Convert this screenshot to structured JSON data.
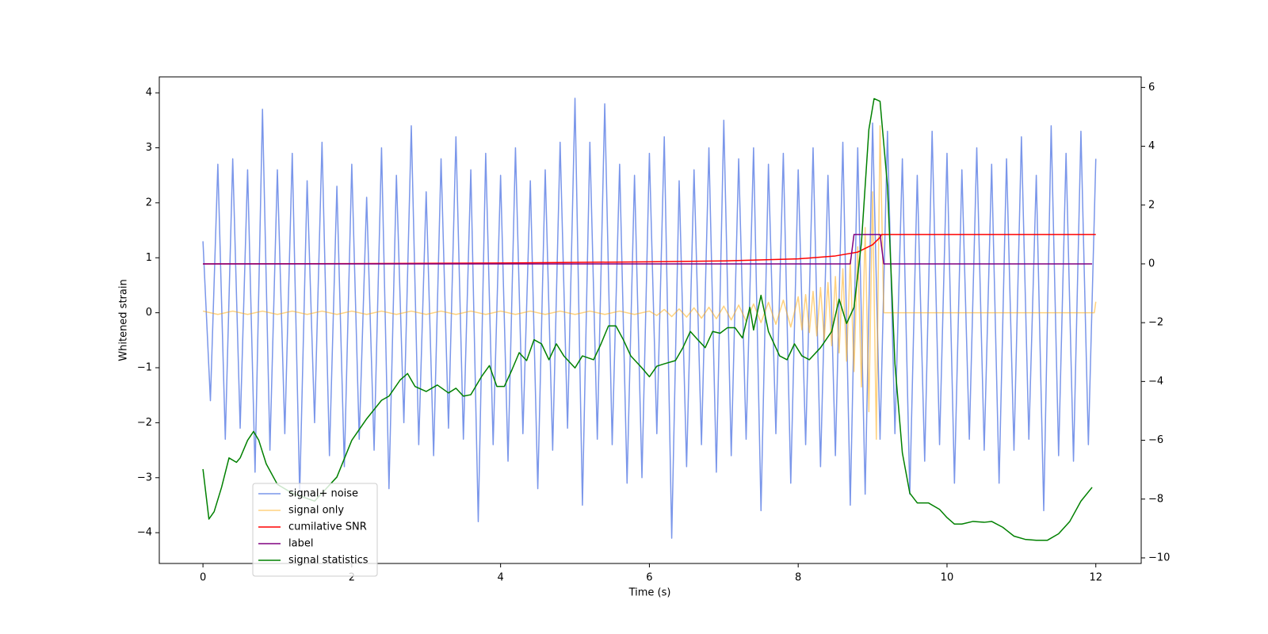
{
  "chart_data": {
    "type": "line",
    "xlabel": "Time (s)",
    "ylabel": "Whitened strain",
    "xlim": [
      -0.587,
      12.61
    ],
    "ylim": [
      -4.56,
      4.29
    ],
    "y2lim": [
      -10.19,
      6.36
    ],
    "xticks": [
      0,
      2,
      4,
      6,
      8,
      10,
      12
    ],
    "yticks": [
      {
        "value": -4,
        "label": "−4"
      },
      {
        "value": -3,
        "label": "−3"
      },
      {
        "value": -2,
        "label": "−2"
      },
      {
        "value": -1,
        "label": "−1"
      },
      0,
      1,
      2,
      3,
      4
    ],
    "y2ticks": [
      {
        "value": -10,
        "label": "−10"
      },
      {
        "value": -8,
        "label": "−8"
      },
      {
        "value": -6,
        "label": "−6"
      },
      {
        "value": -4,
        "label": "−4"
      },
      {
        "value": -2,
        "label": "−2"
      },
      0,
      2,
      4,
      6
    ],
    "legend": "lower left",
    "series": [
      {
        "name": "signal+ noise",
        "color": "royalblue",
        "alpha": 0.7,
        "x": [
          0,
          0.1,
          0.2,
          0.3,
          0.4,
          0.5,
          0.6,
          0.7,
          0.8,
          0.9,
          1,
          1.1,
          1.2,
          1.3,
          1.4,
          1.5,
          1.6,
          1.7,
          1.8,
          1.9,
          2,
          2.1,
          2.2,
          2.3,
          2.4,
          2.5,
          2.6,
          2.7,
          2.8,
          2.9,
          3,
          3.1,
          3.2,
          3.3,
          3.4,
          3.5,
          3.6,
          3.7,
          3.8,
          3.9,
          4,
          4.1,
          4.2,
          4.3,
          4.4,
          4.5,
          4.6,
          4.7,
          4.8,
          4.9,
          5,
          5.1,
          5.2,
          5.3,
          5.4,
          5.5,
          5.6,
          5.7,
          5.8,
          5.9,
          6,
          6.1,
          6.2,
          6.3,
          6.4,
          6.5,
          6.6,
          6.7,
          6.8,
          6.9,
          7,
          7.1,
          7.2,
          7.3,
          7.4,
          7.5,
          7.6,
          7.7,
          7.8,
          7.9,
          8,
          8.1,
          8.2,
          8.3,
          8.4,
          8.5,
          8.6,
          8.7,
          8.8,
          8.9,
          9,
          9.1,
          9.2,
          9.3,
          9.4,
          9.5,
          9.6,
          9.7,
          9.8,
          9.9,
          10,
          10.1,
          10.2,
          10.3,
          10.4,
          10.5,
          10.6,
          10.7,
          10.8,
          10.9,
          11,
          11.1,
          11.2,
          11.3,
          11.4,
          11.5,
          11.6,
          11.7,
          11.8,
          11.9,
          12
        ],
        "values": [
          1.3,
          -1.6,
          2.7,
          -2.3,
          2.8,
          -2.1,
          2.6,
          -2.9,
          3.7,
          -2.5,
          2.6,
          -2.2,
          2.9,
          -3.3,
          2.4,
          -2.0,
          3.1,
          -2.6,
          2.3,
          -2.8,
          2.7,
          -2.3,
          2.1,
          -2.5,
          3.0,
          -3.2,
          2.5,
          -2.0,
          3.4,
          -2.4,
          2.2,
          -2.6,
          2.8,
          -2.1,
          3.2,
          -2.3,
          2.6,
          -3.8,
          2.9,
          -2.4,
          2.5,
          -2.7,
          3.0,
          -2.2,
          2.4,
          -3.2,
          2.6,
          -2.5,
          3.1,
          -2.1,
          3.9,
          -3.5,
          3.1,
          -2.3,
          3.8,
          -2.4,
          2.7,
          -3.1,
          2.5,
          -3.0,
          2.9,
          -2.2,
          3.2,
          -4.1,
          2.4,
          -2.8,
          2.6,
          -2.4,
          3.0,
          -2.9,
          3.5,
          -2.6,
          2.8,
          -2.3,
          3.0,
          -3.6,
          2.7,
          -2.2,
          2.9,
          -3.1,
          2.6,
          -2.4,
          3.0,
          -2.8,
          2.5,
          -2.6,
          3.1,
          -3.5,
          3.0,
          -3.3,
          3.45,
          -2.3,
          3.3,
          -2.2,
          2.8,
          -3.3,
          2.5,
          -2.7,
          3.3,
          -2.4,
          2.9,
          -3.1,
          2.6,
          -2.3,
          3.0,
          -2.5,
          2.7,
          -3.1,
          2.8,
          -2.5,
          3.2,
          -2.3,
          2.5,
          -3.6,
          3.4,
          -2.6,
          2.9,
          -2.7,
          3.3,
          -2.4,
          2.8
        ]
      },
      {
        "name": "signal only",
        "color": "orange",
        "alpha": 0.5,
        "x": [
          0,
          0.2,
          0.4,
          0.6,
          0.8,
          1,
          1.2,
          1.4,
          1.6,
          1.8,
          2,
          2.2,
          2.4,
          2.6,
          2.8,
          3,
          3.2,
          3.4,
          3.6,
          3.8,
          4,
          4.2,
          4.4,
          4.6,
          4.8,
          5,
          5.2,
          5.4,
          5.6,
          5.8,
          6,
          6.1,
          6.2,
          6.3,
          6.4,
          6.5,
          6.6,
          6.7,
          6.8,
          6.9,
          7,
          7.1,
          7.2,
          7.3,
          7.4,
          7.5,
          7.6,
          7.7,
          7.8,
          7.9,
          8,
          8.05,
          8.1,
          8.15,
          8.2,
          8.25,
          8.3,
          8.35,
          8.4,
          8.45,
          8.5,
          8.55,
          8.6,
          8.65,
          8.7,
          8.75,
          8.8,
          8.85,
          8.9,
          8.95,
          9,
          9.05,
          9.1,
          9.15,
          11.98,
          12
        ],
        "values": [
          0.03,
          -0.03,
          0.03,
          -0.03,
          0.03,
          -0.03,
          0.03,
          -0.03,
          0.03,
          -0.03,
          0.03,
          -0.03,
          0.03,
          -0.03,
          0.03,
          -0.03,
          0.03,
          -0.03,
          0.03,
          -0.03,
          0.03,
          -0.03,
          0.03,
          -0.03,
          0.03,
          -0.03,
          0.03,
          -0.03,
          0.03,
          -0.03,
          0.03,
          -0.05,
          0.06,
          -0.07,
          0.07,
          -0.08,
          0.09,
          -0.1,
          0.1,
          -0.11,
          0.12,
          -0.13,
          0.14,
          -0.15,
          0.16,
          -0.18,
          0.19,
          -0.21,
          0.23,
          -0.26,
          0.29,
          -0.31,
          0.33,
          -0.36,
          0.39,
          -0.42,
          0.46,
          -0.5,
          0.55,
          -0.6,
          0.66,
          -0.73,
          0.8,
          -0.88,
          0.97,
          -1.07,
          1.2,
          -1.35,
          1.55,
          -1.8,
          2.2,
          -2.3,
          3.4,
          0,
          0,
          0.2
        ]
      },
      {
        "name": "cumilative SNR",
        "color": "red",
        "axis": "y2",
        "x": [
          0,
          2,
          4,
          6,
          7,
          8,
          8.5,
          8.8,
          9.0,
          9.1,
          9.12,
          12
        ],
        "values": [
          0,
          0.01,
          0.03,
          0.07,
          0.1,
          0.17,
          0.27,
          0.4,
          0.65,
          0.9,
          1,
          1
        ]
      },
      {
        "name": "label",
        "color": "purple",
        "axis": "y2",
        "x": [
          0,
          8.7,
          8.75,
          9.1,
          9.15,
          11.95
        ],
        "values": [
          0,
          0,
          1,
          1,
          0,
          0
        ]
      },
      {
        "name": "signal statistics",
        "color": "green",
        "axis": "y2",
        "x": [
          0,
          0.08,
          0.15,
          0.25,
          0.35,
          0.45,
          0.5,
          0.6,
          0.68,
          0.75,
          0.85,
          1.0,
          1.2,
          1.5,
          1.8,
          2.0,
          2.2,
          2.4,
          2.5,
          2.65,
          2.75,
          2.85,
          3.0,
          3.15,
          3.3,
          3.4,
          3.5,
          3.6,
          3.75,
          3.85,
          3.95,
          4.05,
          4.15,
          4.25,
          4.35,
          4.45,
          4.55,
          4.65,
          4.75,
          4.85,
          5.0,
          5.1,
          5.25,
          5.35,
          5.45,
          5.55,
          5.65,
          5.75,
          5.9,
          6.0,
          6.1,
          6.2,
          6.35,
          6.45,
          6.55,
          6.65,
          6.75,
          6.85,
          6.95,
          7.05,
          7.15,
          7.25,
          7.35,
          7.4,
          7.5,
          7.6,
          7.75,
          7.85,
          7.95,
          8.05,
          8.15,
          8.3,
          8.45,
          8.55,
          8.65,
          8.75,
          8.85,
          8.95,
          9.02,
          9.1,
          9.2,
          9.3,
          9.4,
          9.5,
          9.6,
          9.75,
          9.9,
          10.0,
          10.1,
          10.2,
          10.35,
          10.5,
          10.6,
          10.75,
          10.9,
          11.05,
          11.2,
          11.35,
          11.5,
          11.65,
          11.8,
          11.95
        ],
        "values": [
          -6.98,
          -8.68,
          -8.43,
          -7.6,
          -6.6,
          -6.75,
          -6.6,
          -6.0,
          -5.7,
          -6.0,
          -6.8,
          -7.5,
          -7.8,
          -8.07,
          -7.25,
          -6.0,
          -5.27,
          -4.64,
          -4.5,
          -3.95,
          -3.73,
          -4.17,
          -4.34,
          -4.12,
          -4.39,
          -4.23,
          -4.5,
          -4.45,
          -3.81,
          -3.46,
          -4.17,
          -4.17,
          -3.62,
          -3.02,
          -3.29,
          -2.58,
          -2.72,
          -3.26,
          -2.72,
          -3.13,
          -3.54,
          -3.13,
          -3.26,
          -2.72,
          -2.11,
          -2.11,
          -2.58,
          -3.13,
          -3.54,
          -3.84,
          -3.48,
          -3.4,
          -3.29,
          -2.85,
          -2.3,
          -2.58,
          -2.85,
          -2.3,
          -2.36,
          -2.17,
          -2.17,
          -2.52,
          -1.48,
          -2.25,
          -1.07,
          -2.3,
          -3.13,
          -3.26,
          -2.72,
          -3.13,
          -3.26,
          -2.85,
          -2.3,
          -1.2,
          -2.03,
          -1.48,
          0.72,
          4.57,
          5.62,
          5.53,
          2.65,
          -3.4,
          -6.43,
          -7.8,
          -8.13,
          -8.13,
          -8.35,
          -8.63,
          -8.85,
          -8.85,
          -8.76,
          -8.79,
          -8.76,
          -8.96,
          -9.26,
          -9.37,
          -9.4,
          -9.4,
          -9.18,
          -8.76,
          -8.07,
          -7.6
        ]
      }
    ]
  }
}
